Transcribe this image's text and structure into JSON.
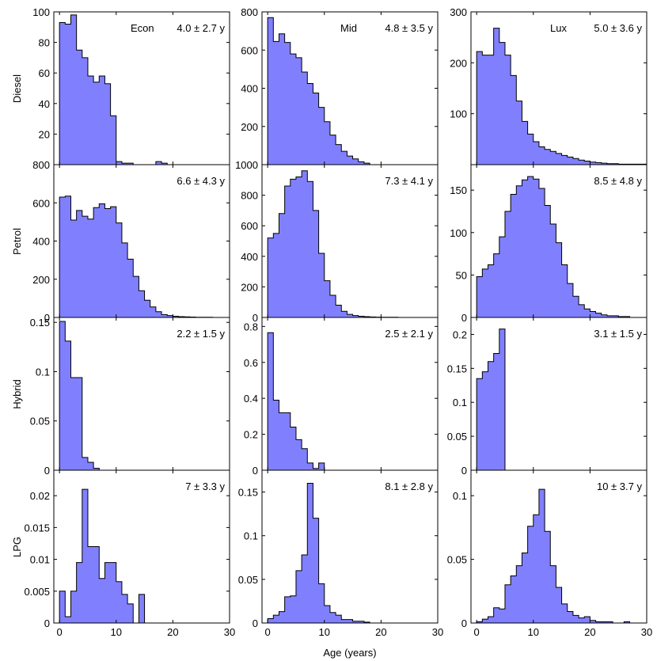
{
  "figure": {
    "xlabel": "Age (years)",
    "col_titles": [
      "Econ",
      "Mid",
      "Lux"
    ],
    "row_labels": [
      "Diesel",
      "Petrol",
      "Hybrid",
      "LPG"
    ],
    "x_ticks": [
      "0",
      "10",
      "20",
      "30"
    ],
    "fill_color": "#8080ff",
    "edge_color": "#000000"
  },
  "chart_data": [
    {
      "type": "bar",
      "row": "Diesel",
      "col": "Econ",
      "annotation": "4.0 ± 2.7 y",
      "xlim": [
        -1,
        30
      ],
      "ylim": [
        0,
        100
      ],
      "yticks": [
        "100",
        "80",
        "60",
        "40",
        "20"
      ],
      "x": [
        0,
        1,
        2,
        3,
        4,
        5,
        6,
        7,
        8,
        9,
        10,
        11,
        12,
        13,
        14,
        15,
        16,
        17,
        18
      ],
      "values": [
        93,
        92,
        98,
        75,
        70,
        58,
        54,
        58,
        53,
        32,
        2,
        1,
        1,
        0,
        0,
        0,
        0,
        2,
        1
      ]
    },
    {
      "type": "bar",
      "row": "Diesel",
      "col": "Mid",
      "annotation": "4.8 ± 3.5 y",
      "xlim": [
        -1,
        30
      ],
      "ylim": [
        0,
        800
      ],
      "yticks": [
        "800",
        "600",
        "400",
        "200"
      ],
      "x": [
        0,
        1,
        2,
        3,
        4,
        5,
        6,
        7,
        8,
        9,
        10,
        11,
        12,
        13,
        14,
        15,
        16,
        17
      ],
      "values": [
        770,
        645,
        685,
        640,
        580,
        560,
        485,
        425,
        375,
        300,
        225,
        155,
        105,
        70,
        45,
        30,
        15,
        8
      ]
    },
    {
      "type": "bar",
      "row": "Diesel",
      "col": "Lux",
      "annotation": "5.0 ± 3.6 y",
      "xlim": [
        -1,
        30
      ],
      "ylim": [
        0,
        300
      ],
      "yticks": [
        "300",
        "200",
        "100"
      ],
      "x": [
        0,
        1,
        2,
        3,
        4,
        5,
        6,
        7,
        8,
        9,
        10,
        11,
        12,
        13,
        14,
        15,
        16,
        17,
        18,
        19,
        20,
        21,
        22,
        23,
        24,
        25,
        26,
        27,
        28,
        29
      ],
      "values": [
        222,
        215,
        215,
        268,
        240,
        215,
        175,
        125,
        85,
        60,
        45,
        35,
        30,
        26,
        22,
        18,
        15,
        12,
        9,
        7,
        5,
        4,
        3,
        2,
        2,
        1,
        1,
        1,
        1,
        1
      ]
    },
    {
      "type": "bar",
      "row": "Petrol",
      "col": "Econ",
      "annotation": "6.6 ± 4.3 y",
      "xlim": [
        -1,
        30
      ],
      "ylim": [
        0,
        800
      ],
      "yticks": [
        "800",
        "600",
        "400",
        "200",
        "0"
      ],
      "x": [
        0,
        1,
        2,
        3,
        4,
        5,
        6,
        7,
        8,
        9,
        10,
        11,
        12,
        13,
        14,
        15,
        16,
        17,
        18,
        19,
        20,
        21,
        22,
        23,
        24,
        25,
        26,
        27,
        28,
        29
      ],
      "values": [
        630,
        635,
        510,
        560,
        530,
        515,
        575,
        595,
        570,
        580,
        495,
        390,
        305,
        215,
        140,
        90,
        55,
        30,
        15,
        10,
        6,
        4,
        3,
        2,
        1,
        1,
        1,
        0,
        0,
        0
      ]
    },
    {
      "type": "bar",
      "row": "Petrol",
      "col": "Mid",
      "annotation": "7.3 ± 4.1 y",
      "xlim": [
        -1,
        30
      ],
      "ylim": [
        0,
        1000
      ],
      "yticks": [
        "1000",
        "800",
        "600",
        "400",
        "200",
        "0"
      ],
      "x": [
        0,
        1,
        2,
        3,
        4,
        5,
        6,
        7,
        8,
        9,
        10,
        11,
        12,
        13,
        14,
        15,
        16,
        17,
        18,
        19,
        20,
        21,
        22,
        23,
        24,
        25,
        26,
        27,
        28,
        29
      ],
      "values": [
        520,
        550,
        680,
        860,
        905,
        920,
        960,
        890,
        700,
        420,
        240,
        145,
        80,
        40,
        20,
        12,
        8,
        5,
        3,
        2,
        1,
        1,
        1,
        0,
        0,
        0,
        0,
        0,
        0,
        0
      ]
    },
    {
      "type": "bar",
      "row": "Petrol",
      "col": "Lux",
      "annotation": "8.5 ± 4.8 y",
      "xlim": [
        -1,
        30
      ],
      "ylim": [
        0,
        180
      ],
      "yticks": [
        "150",
        "100",
        "50",
        "0"
      ],
      "x": [
        0,
        1,
        2,
        3,
        4,
        5,
        6,
        7,
        8,
        9,
        10,
        11,
        12,
        13,
        14,
        15,
        16,
        17,
        18,
        19,
        20,
        21,
        22,
        23,
        24,
        25,
        26,
        27,
        28,
        29
      ],
      "values": [
        48,
        57,
        62,
        75,
        95,
        125,
        145,
        155,
        162,
        166,
        163,
        152,
        132,
        110,
        88,
        62,
        40,
        25,
        15,
        10,
        7,
        5,
        3,
        2,
        2,
        1,
        1,
        0,
        0,
        0
      ]
    },
    {
      "type": "bar",
      "row": "Hybrid",
      "col": "Econ",
      "annotation": "2.2 ± 1.5 y",
      "xlim": [
        -1,
        30
      ],
      "ylim": [
        0,
        0.155
      ],
      "yticks": [
        "0.15",
        "0.1",
        "0.05",
        "0"
      ],
      "x": [
        0,
        1,
        2,
        3,
        4,
        5,
        6
      ],
      "values": [
        0.151,
        0.131,
        0.094,
        0.094,
        0.013,
        0.008,
        0.002
      ]
    },
    {
      "type": "bar",
      "row": "Hybrid",
      "col": "Mid",
      "annotation": "2.5 ± 2.1 y",
      "xlim": [
        -1,
        30
      ],
      "ylim": [
        0,
        0.85
      ],
      "yticks": [
        "0.8",
        "0.6",
        "0.4",
        "0.2",
        "0"
      ],
      "x": [
        0,
        1,
        2,
        3,
        4,
        5,
        6,
        7,
        8,
        9
      ],
      "values": [
        0.765,
        0.39,
        0.32,
        0.32,
        0.24,
        0.17,
        0.12,
        0.04,
        0.01,
        0.04
      ]
    },
    {
      "type": "bar",
      "row": "Hybrid",
      "col": "Lux",
      "annotation": "3.1 ± 1.5 y",
      "xlim": [
        -1,
        30
      ],
      "ylim": [
        0,
        0.225
      ],
      "yticks": [
        "0.2",
        "0.15",
        "0.1",
        "0.05",
        "0"
      ],
      "x": [
        0,
        1,
        2,
        3,
        4
      ],
      "values": [
        0.135,
        0.145,
        0.16,
        0.172,
        0.208
      ]
    },
    {
      "type": "bar",
      "row": "LPG",
      "col": "Econ",
      "annotation": "7 ± 3.3 y",
      "xlim": [
        -1,
        30
      ],
      "ylim": [
        0,
        0.024
      ],
      "yticks": [
        "0.02",
        "0.015",
        "0.01",
        "0.005",
        "0"
      ],
      "x": [
        0,
        1,
        2,
        3,
        4,
        5,
        6,
        7,
        8,
        9,
        10,
        11,
        12,
        13,
        14
      ],
      "values": [
        0.005,
        0.001,
        0.005,
        0.0095,
        0.021,
        0.012,
        0.012,
        0.007,
        0.0095,
        0.0095,
        0.0065,
        0.0045,
        0.003,
        0.0,
        0.0045
      ]
    },
    {
      "type": "bar",
      "row": "LPG",
      "col": "Mid",
      "annotation": "8.1 ± 2.8 y",
      "xlim": [
        -1,
        30
      ],
      "ylim": [
        0,
        0.175
      ],
      "yticks": [
        "0.15",
        "0.1",
        "0.05",
        "0"
      ],
      "x": [
        0,
        1,
        2,
        3,
        4,
        5,
        6,
        7,
        8,
        9,
        10,
        11,
        12,
        13,
        14,
        15,
        16,
        17
      ],
      "values": [
        0.005,
        0.009,
        0.013,
        0.03,
        0.031,
        0.06,
        0.078,
        0.16,
        0.12,
        0.045,
        0.02,
        0.012,
        0.009,
        0.004,
        0.004,
        0.002,
        0.002,
        0.001
      ]
    },
    {
      "type": "bar",
      "row": "LPG",
      "col": "Lux",
      "annotation": "10 ± 3.7 y",
      "xlim": [
        -1,
        30
      ],
      "ylim": [
        0,
        0.12
      ],
      "yticks": [
        "0.1",
        "0.05",
        "0"
      ],
      "x": [
        0,
        1,
        2,
        3,
        4,
        5,
        6,
        7,
        8,
        9,
        10,
        11,
        12,
        13,
        14,
        15,
        16,
        17,
        18,
        19,
        20,
        21,
        22,
        23,
        24,
        25,
        26
      ],
      "values": [
        0.001,
        0.003,
        0.005,
        0.012,
        0.011,
        0.03,
        0.037,
        0.045,
        0.055,
        0.076,
        0.085,
        0.105,
        0.072,
        0.045,
        0.028,
        0.015,
        0.009,
        0.006,
        0.004,
        0.005,
        0.002,
        0.001,
        0.001,
        0.001,
        0.0,
        0.0,
        0.001
      ]
    }
  ]
}
